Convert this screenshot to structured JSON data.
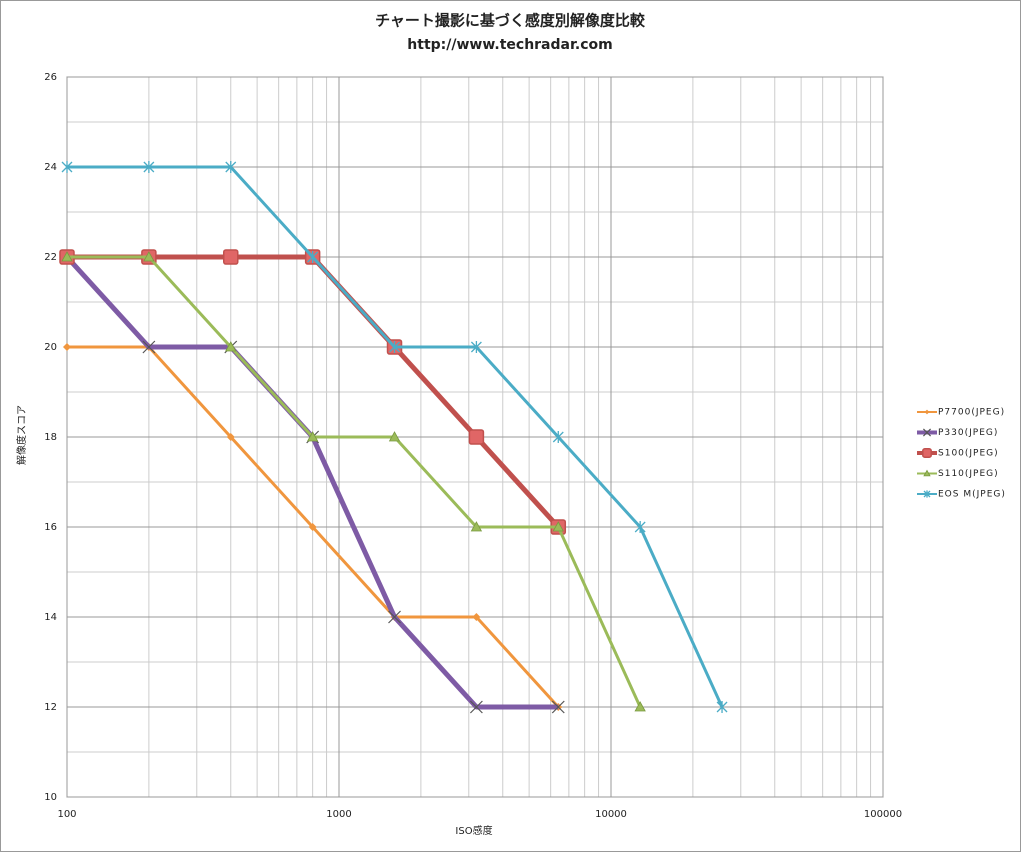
{
  "chart_data": {
    "type": "line",
    "title": "チャート撮影に基づく感度別解像度比較",
    "subtitle": "http://www.techradar.com",
    "x_label": "ISO感度",
    "y_label": "解像度スコア",
    "x": [
      100,
      200,
      400,
      800,
      1600,
      3200,
      6400,
      12800,
      25600
    ],
    "x_log": true,
    "xlim": [
      100,
      100000
    ],
    "xticks": [
      100,
      1000,
      10000,
      100000
    ],
    "ylim": [
      10,
      26
    ],
    "yticks": [
      10,
      12,
      14,
      16,
      18,
      20,
      22,
      24,
      26
    ],
    "grid": true,
    "legend": "right",
    "series": [
      {
        "name": "P7700(JPEG)",
        "color": "#f0963e",
        "marker": "diamond",
        "values": [
          20,
          20,
          18,
          16,
          14,
          14,
          12,
          null,
          null
        ]
      },
      {
        "name": "P330(JPEG)",
        "color": "#7e5ba5",
        "marker": "x",
        "values": [
          22,
          20,
          20,
          18,
          14,
          12,
          12,
          null,
          null
        ]
      },
      {
        "name": "S100(JPEG)",
        "color": "#c0504d",
        "marker": "square",
        "values": [
          22,
          22,
          22,
          22,
          20,
          18,
          16,
          null,
          null
        ]
      },
      {
        "name": "S110(JPEG)",
        "color": "#9bbb59",
        "marker": "triangle",
        "values": [
          22,
          22,
          20,
          18,
          18,
          16,
          16,
          12,
          null
        ]
      },
      {
        "name": "EOS M(JPEG)",
        "color": "#4bacc6",
        "marker": "star",
        "values": [
          24,
          24,
          24,
          22,
          20,
          20,
          18,
          16,
          12
        ]
      }
    ]
  }
}
